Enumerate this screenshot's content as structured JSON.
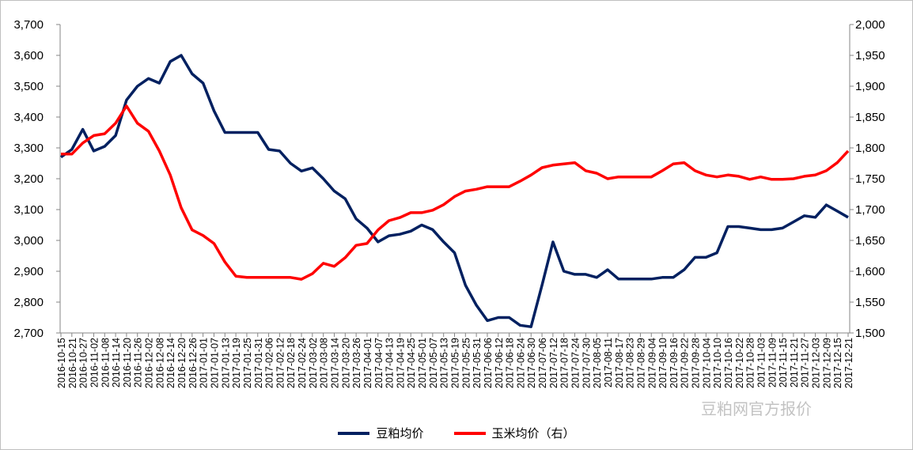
{
  "chart_data": {
    "type": "line",
    "title": "",
    "xlabel": "",
    "ylabel": "",
    "x": [
      "2016-10-15",
      "2016-10-21",
      "2016-10-27",
      "2016-11-02",
      "2016-11-08",
      "2016-11-14",
      "2016-11-20",
      "2016-11-26",
      "2016-12-02",
      "2016-12-08",
      "2016-12-14",
      "2016-12-20",
      "2016-12-26",
      "2017-01-01",
      "2017-01-07",
      "2017-01-13",
      "2017-01-19",
      "2017-01-25",
      "2017-01-31",
      "2017-02-06",
      "2017-02-12",
      "2017-02-18",
      "2017-02-24",
      "2017-03-02",
      "2017-03-08",
      "2017-03-14",
      "2017-03-20",
      "2017-03-26",
      "2017-04-01",
      "2017-04-07",
      "2017-04-13",
      "2017-04-19",
      "2017-04-25",
      "2017-05-01",
      "2017-05-07",
      "2017-05-13",
      "2017-05-19",
      "2017-05-25",
      "2017-05-31",
      "2017-06-06",
      "2017-06-12",
      "2017-06-18",
      "2017-06-24",
      "2017-06-30",
      "2017-07-06",
      "2017-07-12",
      "2017-07-18",
      "2017-07-24",
      "2017-07-30",
      "2017-08-05",
      "2017-08-11",
      "2017-08-17",
      "2017-08-23",
      "2017-08-29",
      "2017-09-04",
      "2017-09-10",
      "2017-09-16",
      "2017-09-22",
      "2017-09-28",
      "2017-10-04",
      "2017-10-10",
      "2017-10-16",
      "2017-10-22",
      "2017-10-28",
      "2017-11-03",
      "2017-11-09",
      "2017-11-15",
      "2017-11-21",
      "2017-11-27",
      "2017-12-03",
      "2017-12-09",
      "2017-12-15",
      "2017-12-21"
    ],
    "ylim_left": [
      2700,
      3700
    ],
    "yticks_left": [
      "2,700",
      "2,800",
      "2,900",
      "3,000",
      "3,100",
      "3,200",
      "3,300",
      "3,400",
      "3,500",
      "3,600",
      "3,700"
    ],
    "ylim_right": [
      1500,
      2000
    ],
    "yticks_right": [
      "1,500",
      "1,550",
      "1,600",
      "1,650",
      "1,700",
      "1,750",
      "1,800",
      "1,850",
      "1,900",
      "1,950",
      "2,000"
    ],
    "grid": false,
    "legend_position": "bottom",
    "series": [
      {
        "name": "豆粕均价",
        "axis": "left",
        "color": "#002060",
        "values": [
          3270,
          3295,
          3360,
          3290,
          3305,
          3340,
          3455,
          3500,
          3525,
          3510,
          3580,
          3600,
          3540,
          3510,
          3420,
          3350,
          3350,
          3350,
          3350,
          3295,
          3290,
          3250,
          3225,
          3235,
          3200,
          3160,
          3135,
          3070,
          3040,
          2995,
          3015,
          3020,
          3030,
          3050,
          3035,
          2995,
          2960,
          2855,
          2790,
          2740,
          2750,
          2750,
          2725,
          2720,
          2855,
          2995,
          2900,
          2890,
          2890,
          2880,
          2905,
          2875,
          2875,
          2875,
          2875,
          2880,
          2880,
          2905,
          2945,
          2945,
          2960,
          3045,
          3045,
          3040,
          3035,
          3035,
          3040,
          3060,
          3080,
          3075,
          3115,
          3095,
          3075
        ]
      },
      {
        "name": "玉米均价（右）",
        "axis": "right",
        "color": "#ff0000",
        "values": [
          1790,
          1790,
          1808,
          1820,
          1823,
          1840,
          1868,
          1840,
          1827,
          1795,
          1756,
          1703,
          1667,
          1658,
          1645,
          1615,
          1592,
          1590,
          1590,
          1590,
          1590,
          1590,
          1587,
          1596,
          1613,
          1608,
          1622,
          1642,
          1645,
          1667,
          1682,
          1687,
          1695,
          1695,
          1699,
          1708,
          1721,
          1730,
          1733,
          1737,
          1737,
          1737,
          1746,
          1756,
          1768,
          1772,
          1774,
          1776,
          1763,
          1759,
          1750,
          1753,
          1753,
          1753,
          1753,
          1763,
          1774,
          1776,
          1763,
          1756,
          1753,
          1756,
          1754,
          1749,
          1753,
          1749,
          1749,
          1750,
          1754,
          1756,
          1763,
          1776,
          1795
        ]
      }
    ]
  },
  "legend": {
    "item1": "豆粕均价",
    "item2": "玉米均价（右）"
  },
  "watermark": "豆粕网官方报价"
}
